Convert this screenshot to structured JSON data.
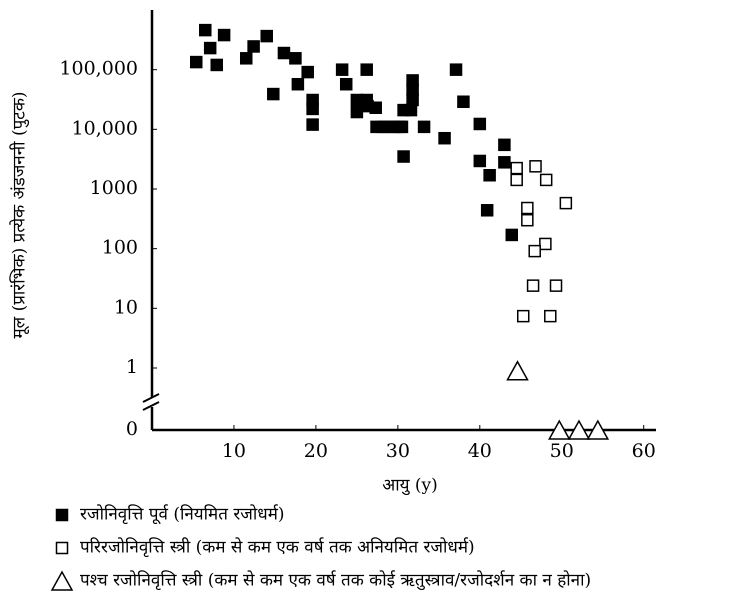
{
  "chart_data": {
    "type": "scatter",
    "x_label": "आयु (y)",
    "y_label": "मूल (प्रारंभिक) प्रत्येक अंडजननी (पुटक)",
    "xlim": [
      0,
      61.5
    ],
    "xticks": [
      10,
      20,
      30,
      40,
      50,
      60
    ],
    "ylim": [
      0,
      1000000
    ],
    "log_y": true,
    "y_axis_break": true,
    "yticks": [
      0,
      1,
      10,
      100,
      1000,
      {
        "value": 10000,
        "label": "10,000"
      },
      {
        "value": 100000,
        "label": "100,000"
      }
    ],
    "series": [
      {
        "name": "रजोनिवृत्ति पूर्व (नियमित रजोधर्म)",
        "marker": "square",
        "filled": true,
        "color": "#000000",
        "x": [
          5.4,
          6.5,
          7.1,
          7.9,
          8.8,
          11.5,
          12.4,
          14.0,
          14.8,
          16.1,
          17.5,
          17.8,
          19.0,
          19.6,
          19.6,
          19.6,
          23.2,
          23.7,
          25.0,
          25.0,
          26.2,
          26.2,
          26.3,
          27.3,
          27.4,
          28.2,
          28.8,
          29.6,
          30.2,
          30.5,
          30.7,
          30.7,
          31.6,
          31.8,
          31.8,
          31.8,
          33.2,
          35.7,
          37.1,
          38.0,
          40.0,
          40.0,
          41.2,
          40.9,
          43.0,
          43.0,
          43.9
        ],
        "values": [
          134000,
          460000,
          230000,
          120000,
          380000,
          155000,
          245000,
          365000,
          39000,
          190000,
          155000,
          57000,
          91000,
          31000,
          22000,
          12000,
          100000,
          57000,
          31000,
          19500,
          100000,
          31000,
          24500,
          23000,
          11000,
          11000,
          11000,
          11000,
          11000,
          11000,
          3500,
          21000,
          21000,
          66000,
          46000,
          31000,
          11000,
          7100,
          100000,
          29000,
          12300,
          2950,
          1700,
          440,
          5500,
          2800,
          170
        ]
      },
      {
        "name": "परिरजोनिवृत्ति स्त्री (कम से कम एक वर्ष तक अनियमित रजोधर्म)",
        "marker": "square",
        "filled": false,
        "color": "#000000",
        "x": [
          44.5,
          44.5,
          45.8,
          45.8,
          46.8,
          48.1,
          48.0,
          46.7,
          46.5,
          49.3,
          45.3,
          48.6,
          50.5
        ],
        "values": [
          2240,
          1420,
          480,
          300,
          2400,
          1420,
          120,
          91,
          24,
          24,
          7.4,
          7.4,
          580
        ]
      },
      {
        "name": "पश्च रजोनिवृत्ति स्त्री (कम से कम एक वर्ष तक कोई ऋतुस्त्राव/रजोदर्शन का न होना)",
        "marker": "triangle",
        "filled": false,
        "color": "#000000",
        "x": [
          44.6,
          49.7,
          52.1,
          54.4
        ],
        "values": [
          0.9,
          0,
          0,
          0
        ]
      }
    ]
  }
}
